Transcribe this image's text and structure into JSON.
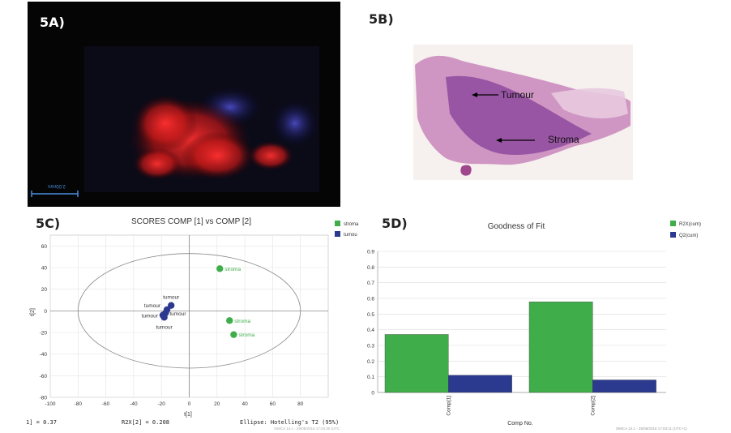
{
  "panels": {
    "a": {
      "label": "5A)",
      "scale_text": "2.00mm"
    },
    "b": {
      "label": "5B)",
      "annotations": [
        "Tumour",
        "Stroma"
      ]
    },
    "c": {
      "label": "5C)"
    },
    "d": {
      "label": "5D)"
    }
  },
  "chart_data": [
    {
      "type": "scatter",
      "title": "SCORES COMP [1] vs COMP [2]",
      "xlabel": "t[1]",
      "ylabel": "t[2]",
      "xlim": [
        -100,
        100
      ],
      "ylim": [
        -80,
        70
      ],
      "xticks": [
        -100,
        -80,
        -60,
        -40,
        -20,
        0,
        20,
        40,
        60,
        80
      ],
      "yticks": [
        -80,
        -60,
        -40,
        -20,
        0,
        20,
        40,
        60
      ],
      "grid": true,
      "legend_position": "top-right",
      "series": [
        {
          "name": "stroma",
          "color": "#3fae4a",
          "points": [
            {
              "x": 22,
              "y": 39,
              "label": "stroma"
            },
            {
              "x": 29,
              "y": -9,
              "label": "stroma"
            },
            {
              "x": 32,
              "y": -22,
              "label": "stroma"
            }
          ]
        },
        {
          "name": "tumou",
          "color": "#2b3a8f",
          "points": [
            {
              "x": -13,
              "y": 5,
              "label": "tumour"
            },
            {
              "x": -16,
              "y": 1,
              "label": "tumour"
            },
            {
              "x": -17,
              "y": -2,
              "label": "tumour"
            },
            {
              "x": -19,
              "y": -4,
              "label": "tumour"
            },
            {
              "x": -18,
              "y": -6,
              "label": "tumour"
            }
          ]
        }
      ],
      "footer": {
        "left": "1] = 0.37",
        "middle": "R2X[2] = 0.208",
        "right": "Ellipse: Hotelling's T2 (95%)",
        "stamp": "SIMCA 14.1 - 25/08/2016 17:03:30 (UTC"
      }
    },
    {
      "type": "bar",
      "title": "Goodness of Fit",
      "xlabel": "Comp No.",
      "ylabel": "",
      "categories": [
        "Comp[1]",
        "Comp[2]"
      ],
      "ylim": [
        0,
        0.9
      ],
      "yticks": [
        0,
        0.1,
        0.2,
        0.3,
        0.4,
        0.5,
        0.6,
        0.7,
        0.8,
        0.9
      ],
      "grid": true,
      "legend_position": "top-right",
      "series": [
        {
          "name": "R2X(cum)",
          "color": "#3fae4a",
          "values": [
            0.37,
            0.578
          ]
        },
        {
          "name": "Q2(cum)",
          "color": "#2b3a8f",
          "values": [
            0.11,
            0.08
          ]
        }
      ],
      "footer": {
        "stamp": "SIMCA 14.1 - 25/08/2016 17:03:11 (UTC+1)"
      }
    }
  ]
}
